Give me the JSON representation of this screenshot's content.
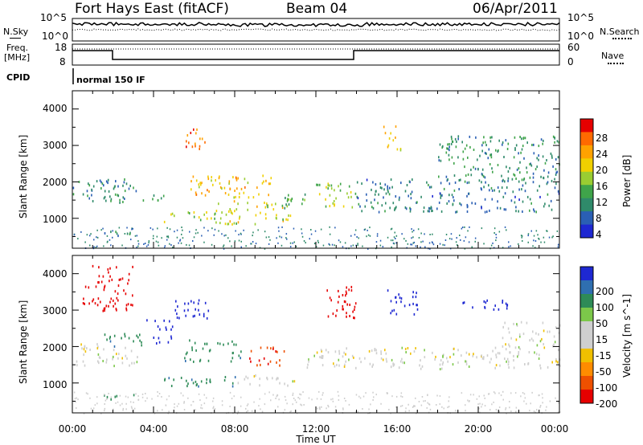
{
  "header": {
    "station": "Fort Hays East (fitACF)",
    "beam": "Beam 04",
    "date": "06/Apr/2011"
  },
  "status_panel": {
    "nsky_label": "N.Sky",
    "nsearch_label": "N.Search",
    "noise_ticks": [
      "10^5",
      "10^0"
    ],
    "freq_label_line1": "Freq.",
    "freq_label_line2": "[MHz]",
    "freq_ticks": [
      "18",
      "8"
    ],
    "nave_label": "Nave",
    "nave_ticks": [
      "60",
      "0"
    ],
    "cpid_label": "CPID",
    "cpid_value": "normal 150 IF"
  },
  "colors": {
    "power": [
      "#1e28d2",
      "#2a5fb4",
      "#2f8a6a",
      "#3fa44a",
      "#9acd32",
      "#f0d000",
      "#ffa200",
      "#ff6a00",
      "#e60000"
    ],
    "velocity": [
      "#1e28d2",
      "#2f6fb0",
      "#2e8b57",
      "#7cc84a",
      "#cfcfcf",
      "#cfcfcf",
      "#f0c000",
      "#ff8c00",
      "#ee5000",
      "#e60000"
    ],
    "ground": "#bdbdbd"
  },
  "chart_data": [
    {
      "type": "heatmap",
      "panel": "power",
      "ylabel": "Slant Range [km]",
      "xlabel": "Time UT",
      "xticks": [
        "00:00",
        "04:00",
        "08:00",
        "12:00",
        "16:00",
        "20:00",
        "00:00"
      ],
      "xlim_hours": [
        0,
        24
      ],
      "yticks": [
        "1000",
        "2000",
        "3000",
        "4000"
      ],
      "ylim_km": [
        180,
        4500
      ],
      "colorbar": {
        "label": "Power [dB]",
        "ticks": [
          "28",
          "24",
          "20",
          "16",
          "12",
          "8",
          "4"
        ],
        "range": [
          0,
          30
        ]
      },
      "scatter_regions": [
        {
          "t0": 0.0,
          "t1": 3.2,
          "r0": 1500,
          "r1": 2100,
          "value": 8
        },
        {
          "t0": 1.5,
          "t1": 4.5,
          "r0": 1450,
          "r1": 1700,
          "value": 10
        },
        {
          "t0": 4.5,
          "t1": 7.0,
          "r0": 900,
          "r1": 1200,
          "value": 16
        },
        {
          "t0": 5.8,
          "t1": 9.8,
          "r0": 1600,
          "r1": 2200,
          "value": 20
        },
        {
          "t0": 7.0,
          "t1": 10.8,
          "r0": 850,
          "r1": 1500,
          "value": 17
        },
        {
          "t0": 9.5,
          "t1": 11.5,
          "r0": 1300,
          "r1": 1700,
          "value": 12
        },
        {
          "t0": 12.0,
          "t1": 14.0,
          "r0": 1300,
          "r1": 2000,
          "value": 14
        },
        {
          "t0": 14.0,
          "t1": 24.0,
          "r0": 1200,
          "r1": 2100,
          "value": 7
        },
        {
          "t0": 18.0,
          "t1": 24.0,
          "r0": 2100,
          "r1": 3300,
          "value": 9
        },
        {
          "t0": 5.5,
          "t1": 6.6,
          "r0": 2900,
          "r1": 3500,
          "value": 24
        },
        {
          "t0": 1.2,
          "t1": 3.2,
          "r0": 550,
          "r1": 700,
          "value": 8
        },
        {
          "t0": 15.3,
          "t1": 16.2,
          "r0": 2900,
          "r1": 3600,
          "value": 20
        }
      ]
    },
    {
      "type": "heatmap",
      "panel": "velocity",
      "ylabel": "Slant Range [km]",
      "xlabel": "Time UT",
      "xticks": [
        "00:00",
        "04:00",
        "08:00",
        "12:00",
        "16:00",
        "20:00",
        "00:00"
      ],
      "xlim_hours": [
        0,
        24
      ],
      "yticks": [
        "1000",
        "2000",
        "3000",
        "4000"
      ],
      "ylim_km": [
        180,
        4500
      ],
      "colorbar": {
        "label": "Velocity [m s^-1]",
        "ticks": [
          "200",
          "100",
          "50",
          "15",
          "-15",
          "-50",
          "-100",
          "-200"
        ],
        "range": [
          -250,
          250
        ]
      },
      "scatter_regions": [
        {
          "t0": 0.0,
          "t1": 3.2,
          "r0": 1500,
          "r1": 2100,
          "value": 0
        },
        {
          "t0": 1.5,
          "t1": 3.5,
          "r0": 2000,
          "r1": 2400,
          "value": 60
        },
        {
          "t0": 3.5,
          "t1": 5.0,
          "r0": 2100,
          "r1": 2800,
          "value": 220
        },
        {
          "t0": 5.0,
          "t1": 6.8,
          "r0": 2800,
          "r1": 3400,
          "value": 200
        },
        {
          "t0": 5.5,
          "t1": 8.5,
          "r0": 1600,
          "r1": 2200,
          "value": 60
        },
        {
          "t0": 8.5,
          "t1": 10.5,
          "r0": 1500,
          "r1": 2100,
          "value": -150
        },
        {
          "t0": 4.0,
          "t1": 8.0,
          "r0": 900,
          "r1": 1200,
          "value": 60
        },
        {
          "t0": 8.0,
          "t1": 11.0,
          "r0": 950,
          "r1": 1250,
          "value": 0
        },
        {
          "t0": 11.5,
          "t1": 24.0,
          "r0": 1400,
          "r1": 2000,
          "value": 0
        },
        {
          "t0": 12.5,
          "t1": 14.0,
          "r0": 2700,
          "r1": 3700,
          "value": -220
        },
        {
          "t0": 15.5,
          "t1": 17.0,
          "r0": 2900,
          "r1": 3600,
          "value": 200
        },
        {
          "t0": 19.0,
          "t1": 21.5,
          "r0": 3000,
          "r1": 3300,
          "value": 200
        },
        {
          "t0": 21.0,
          "t1": 24.0,
          "r0": 2000,
          "r1": 2700,
          "value": 0
        },
        {
          "t0": 1.0,
          "t1": 3.2,
          "r0": 550,
          "r1": 700,
          "value": 60
        },
        {
          "t0": 0.5,
          "t1": 3.0,
          "r0": 3000,
          "r1": 4300,
          "value": -200
        }
      ]
    }
  ]
}
